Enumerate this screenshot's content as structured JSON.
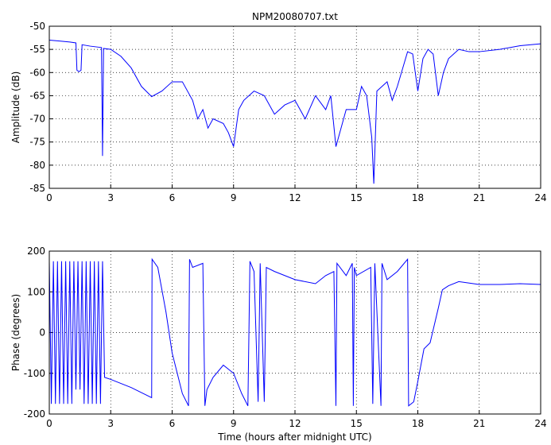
{
  "chart_data": [
    {
      "type": "line",
      "title": "NPM20080707.txt",
      "ylabel": "Amplitude (dB)",
      "xlim": [
        0,
        24
      ],
      "xticks": [
        0,
        3,
        6,
        9,
        12,
        15,
        18,
        21,
        24
      ],
      "ylim": [
        -85,
        -50
      ],
      "yticks": [
        -85,
        -80,
        -75,
        -70,
        -65,
        -60,
        -55,
        -50
      ],
      "grid": true,
      "series": [
        {
          "color": "#0000ff",
          "x": [
            0,
            0.5,
            1,
            1.3,
            1.35,
            1.45,
            1.55,
            1.6,
            2,
            2.55,
            2.6,
            2.65,
            3,
            3.5,
            4,
            4.5,
            5,
            5.5,
            6,
            6.5,
            7,
            7.25,
            7.5,
            7.75,
            8,
            8.5,
            8.75,
            9,
            9.25,
            9.5,
            10,
            10.5,
            11,
            11.5,
            12,
            12.5,
            13,
            13.5,
            13.75,
            14,
            14.25,
            14.5,
            15,
            15.25,
            15.5,
            15.75,
            15.85,
            16,
            16.5,
            16.75,
            17,
            17.5,
            17.75,
            18,
            18.25,
            18.5,
            18.75,
            19,
            19.25,
            19.5,
            20,
            20.5,
            21,
            22,
            23,
            24
          ],
          "values": [
            -53,
            -53.2,
            -53.4,
            -53.6,
            -59.5,
            -59.8,
            -59.5,
            -54,
            -54.3,
            -54.6,
            -78,
            -54.8,
            -55,
            -56.5,
            -59,
            -63,
            -65.2,
            -64,
            -62,
            -62,
            -66,
            -70,
            -68,
            -72,
            -70,
            -71,
            -73,
            -76,
            -68,
            -66,
            -64,
            -65,
            -69,
            -67,
            -66,
            -70,
            -65,
            -68,
            -65,
            -76,
            -72,
            -68,
            -68,
            -63,
            -65,
            -74,
            -84,
            -64,
            -62,
            -66,
            -63,
            -55.5,
            -56,
            -64,
            -57,
            -55,
            -56,
            -65,
            -60,
            -57,
            -55,
            -55.5,
            -55.5,
            -55,
            -54.2,
            -53.8
          ]
        }
      ]
    },
    {
      "type": "line",
      "xlabel": "Time (hours after midnight UTC)",
      "ylabel": "Phase (degrees)",
      "xlim": [
        0,
        24
      ],
      "xticks": [
        0,
        3,
        6,
        9,
        12,
        15,
        18,
        21,
        24
      ],
      "ylim": [
        -200,
        200
      ],
      "yticks": [
        -200,
        -100,
        0,
        100,
        200
      ],
      "grid": true,
      "series": [
        {
          "color": "#0000ff",
          "x": [
            0,
            0.1,
            0.2,
            0.3,
            0.4,
            0.5,
            0.6,
            0.7,
            0.8,
            0.9,
            1.0,
            1.1,
            1.2,
            1.3,
            1.4,
            1.5,
            1.6,
            1.7,
            1.8,
            1.9,
            2.0,
            2.1,
            2.2,
            2.3,
            2.4,
            2.5,
            2.6,
            2.7,
            3,
            4,
            5,
            5.02,
            5.3,
            5.7,
            6,
            6.5,
            6.8,
            6.85,
            7,
            7.5,
            7.6,
            7.7,
            8,
            8.5,
            9,
            9.4,
            9.7,
            9.8,
            10,
            10.2,
            10.3,
            10.5,
            10.6,
            11,
            12,
            13,
            13.5,
            13.9,
            14,
            14.05,
            14.5,
            14.8,
            14.85,
            14.9,
            15,
            15.7,
            15.8,
            15.9,
            16.2,
            16.25,
            16.5,
            17,
            17.5,
            17.55,
            17.8,
            18,
            18.3,
            18.6,
            19,
            19.2,
            19.5,
            20,
            21,
            22,
            23,
            24
          ],
          "values": [
            175,
            -175,
            175,
            -175,
            175,
            -175,
            175,
            -175,
            175,
            -175,
            175,
            -175,
            175,
            -140,
            175,
            -140,
            175,
            -175,
            175,
            -175,
            175,
            -175,
            175,
            -175,
            175,
            -175,
            175,
            -110,
            -115,
            -135,
            -160,
            180,
            160,
            50,
            -50,
            -150,
            -180,
            180,
            160,
            170,
            -180,
            -140,
            -110,
            -80,
            -100,
            -150,
            -180,
            175,
            150,
            -170,
            170,
            -170,
            160,
            150,
            130,
            120,
            140,
            150,
            -180,
            170,
            140,
            170,
            -180,
            160,
            140,
            160,
            -175,
            170,
            -180,
            170,
            130,
            150,
            180,
            -180,
            -170,
            -120,
            -40,
            -25,
            60,
            105,
            115,
            125,
            118,
            118,
            120,
            118
          ]
        }
      ]
    }
  ]
}
